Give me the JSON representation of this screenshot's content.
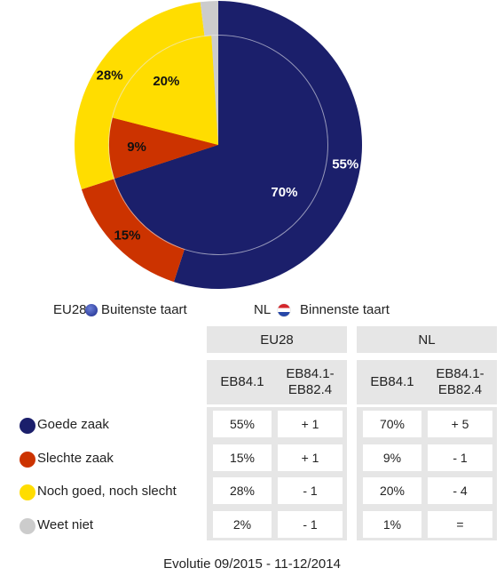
{
  "chart_data": {
    "type": "pie",
    "categories": [
      "Goede zaak",
      "Slechte zaak",
      "Noch goed, noch slecht",
      "Weet niet"
    ],
    "colors": [
      "#1b1f6b",
      "#cc3300",
      "#ffdd00",
      "#cccccc"
    ],
    "series": [
      {
        "name": "EU28",
        "description": "Buitenste taart",
        "values": [
          55,
          15,
          28,
          2
        ],
        "value_labels": [
          "55%",
          "15%",
          "28%",
          null
        ]
      },
      {
        "name": "NL",
        "description": "Binnenste taart",
        "values": [
          70,
          9,
          20,
          1
        ],
        "value_labels": [
          "70%",
          "9%",
          "20%",
          null
        ]
      }
    ]
  },
  "table": {
    "columns": [
      "EB84.1",
      "EB84.1-EB82.4"
    ],
    "rows": [
      [
        "55%",
        "+ 1",
        "70%",
        "+ 5"
      ],
      [
        "15%",
        "+ 1",
        "9%",
        "- 1"
      ],
      [
        "28%",
        "- 1",
        "20%",
        "- 4"
      ],
      [
        "2%",
        "- 1",
        "1%",
        "="
      ]
    ]
  },
  "footer": "Evolutie 09/2015 - 11-12/2014"
}
